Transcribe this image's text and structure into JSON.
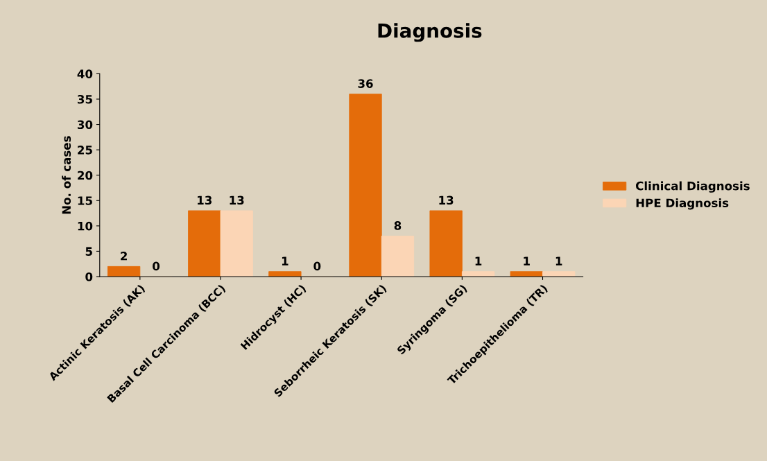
{
  "chart_data": {
    "type": "bar",
    "title": "Diagnosis",
    "ylabel": "No. of cases",
    "categories": [
      "Actinic Keratosis (AK)",
      "Basal Cell Carcinoma (BCC)",
      "Hidrocyst (HC)",
      "Seborrheic Keratosis (SK)",
      "Syringoma (SG)",
      "Trichoepithelioma (TR)"
    ],
    "series": [
      {
        "name": "Clinical Diagnosis",
        "color": "#e46c0a",
        "values": [
          2,
          13,
          1,
          36,
          13,
          1
        ]
      },
      {
        "name": "HPE Diagnosis",
        "color": "#fbd5b5",
        "values": [
          0,
          13,
          0,
          8,
          1,
          1
        ]
      }
    ],
    "ylim": [
      0,
      40
    ],
    "yticks": [
      0,
      5,
      10,
      15,
      20,
      25,
      30,
      35,
      40
    ],
    "data_labels": true,
    "legend": "right",
    "grid": false
  }
}
